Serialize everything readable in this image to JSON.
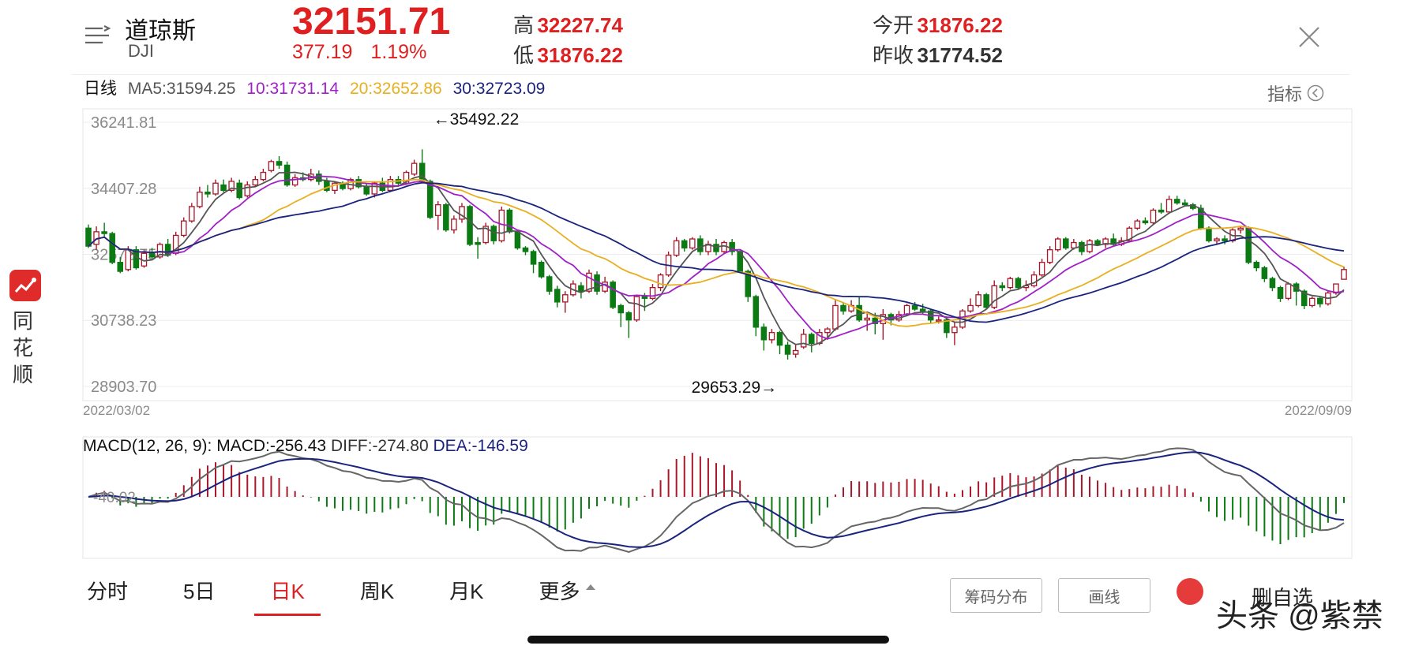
{
  "header": {
    "name": "道琼斯",
    "code": "DJI",
    "price": "32151.71",
    "change": "377.19",
    "change_pct": "1.19%",
    "high_label": "高",
    "high": "32227.74",
    "low_label": "低",
    "low": "31876.22",
    "open_label": "今开",
    "open": "31876.22",
    "prev_close_label": "昨收",
    "prev_close": "31774.52"
  },
  "ma_bar": {
    "period": "日线",
    "ma5": "MA5:31594.25",
    "ma10": "10:31731.14",
    "ma20": "20:32652.86",
    "ma30": "30:32723.09"
  },
  "indicator_label": "指标",
  "sidebar": {
    "app_name": "同花顺"
  },
  "colors": {
    "up": "#a8182a",
    "down": "#0c7a13",
    "ma5": "#555555",
    "ma10": "#a020c8",
    "ma20": "#e8b020",
    "ma30": "#1a237e",
    "accent": "#e02020"
  },
  "chart_data": [
    {
      "type": "candlestick",
      "y_ticks": [
        "36241.81",
        "34407.28",
        "32572.75",
        "30738.23",
        "28903.70"
      ],
      "ylim": [
        28903.7,
        36241.81
      ],
      "x_start": "2022/03/02",
      "x_end": "2022/09/09",
      "max_annotation": "←35492.22",
      "min_annotation": "29653.29→",
      "candles": [
        [
          33300,
          32800,
          33400,
          32750
        ],
        [
          32850,
          33200,
          33350,
          32700
        ],
        [
          33200,
          33150,
          33450,
          33050
        ],
        [
          33150,
          32350,
          33200,
          32300
        ],
        [
          32350,
          32100,
          32500,
          32050
        ],
        [
          32150,
          32700,
          32800,
          32100
        ],
        [
          32700,
          32200,
          32800,
          32150
        ],
        [
          32250,
          32600,
          32700,
          32200
        ],
        [
          32600,
          32500,
          32750,
          32450
        ],
        [
          32500,
          32850,
          32900,
          32450
        ],
        [
          32850,
          32550,
          33000,
          32500
        ],
        [
          32600,
          33100,
          33200,
          32550
        ],
        [
          33100,
          33500,
          33600,
          33050
        ],
        [
          33500,
          33900,
          34000,
          33450
        ],
        [
          33900,
          34300,
          34450,
          33850
        ],
        [
          34300,
          34250,
          34500,
          34150
        ],
        [
          34250,
          34550,
          34650,
          34200
        ],
        [
          34500,
          34350,
          34650,
          34300
        ],
        [
          34350,
          34600,
          34700,
          34300
        ],
        [
          34550,
          34150,
          34650,
          34100
        ],
        [
          34200,
          34500,
          34600,
          34150
        ],
        [
          34500,
          34650,
          34750,
          34450
        ],
        [
          34650,
          34850,
          34950,
          34600
        ],
        [
          34900,
          35150,
          35200,
          34850
        ],
        [
          35150,
          35050,
          35300,
          34950
        ],
        [
          35050,
          34500,
          35150,
          34450
        ],
        [
          34500,
          34700,
          34800,
          34450
        ],
        [
          34700,
          34650,
          34850,
          34600
        ],
        [
          34650,
          34800,
          34950,
          34600
        ],
        [
          34800,
          34600,
          34900,
          34500
        ],
        [
          34600,
          34350,
          34700,
          34300
        ],
        [
          34350,
          34550,
          34600,
          34250
        ],
        [
          34550,
          34400,
          34600,
          34350
        ],
        [
          34400,
          34650,
          34700,
          34350
        ],
        [
          34650,
          34450,
          34750,
          34400
        ],
        [
          34450,
          34250,
          34550,
          34200
        ],
        [
          34250,
          34550,
          34600,
          34150
        ],
        [
          34550,
          34350,
          34700,
          34300
        ],
        [
          34350,
          34650,
          34750,
          34300
        ],
        [
          34650,
          34550,
          34750,
          34450
        ],
        [
          34550,
          34850,
          34900,
          34500
        ],
        [
          34800,
          35100,
          35200,
          34750
        ],
        [
          35100,
          34600,
          35490,
          34550
        ],
        [
          34600,
          33600,
          34650,
          33550
        ],
        [
          33650,
          33950,
          34050,
          33250
        ],
        [
          33950,
          33250,
          34000,
          33200
        ],
        [
          33250,
          33550,
          33650,
          33150
        ],
        [
          33550,
          33900,
          34000,
          33450
        ],
        [
          33900,
          32850,
          33950,
          32800
        ],
        [
          32900,
          32850,
          33050,
          32450
        ],
        [
          32900,
          33350,
          33450,
          32850
        ],
        [
          33350,
          32950,
          33400,
          32850
        ],
        [
          32950,
          33800,
          33900,
          32900
        ],
        [
          33800,
          33200,
          33850,
          33150
        ],
        [
          33200,
          32750,
          33250,
          32700
        ],
        [
          32750,
          32650,
          32800,
          32550
        ],
        [
          32650,
          32300,
          32700,
          32050
        ],
        [
          32350,
          31950,
          32400,
          31900
        ],
        [
          31950,
          31550,
          32000,
          31450
        ],
        [
          31600,
          31250,
          31700,
          31100
        ],
        [
          31250,
          31450,
          31550,
          30950
        ],
        [
          31450,
          31750,
          31850,
          31400
        ],
        [
          31700,
          31550,
          31800,
          31350
        ],
        [
          31550,
          32050,
          32150,
          31500
        ],
        [
          32000,
          31550,
          32100,
          31450
        ],
        [
          31550,
          31800,
          31950,
          31500
        ],
        [
          31800,
          31100,
          31850,
          31050
        ],
        [
          31150,
          30950,
          31200,
          30550
        ],
        [
          30950,
          30750,
          31000,
          30250
        ],
        [
          30750,
          31400,
          31450,
          30700
        ],
        [
          31400,
          31350,
          31500,
          31000
        ],
        [
          31350,
          31650,
          31750,
          31300
        ],
        [
          31650,
          32000,
          32050,
          31550
        ],
        [
          32000,
          32550,
          32650,
          31950
        ],
        [
          32550,
          32950,
          33050,
          32500
        ],
        [
          32950,
          32750,
          33000,
          32650
        ],
        [
          32750,
          33000,
          33050,
          32700
        ],
        [
          33000,
          32650,
          33100,
          32550
        ],
        [
          32650,
          32850,
          32950,
          32550
        ],
        [
          32850,
          32650,
          33000,
          32550
        ],
        [
          32650,
          32900,
          32950,
          32600
        ],
        [
          32900,
          32650,
          33000,
          32550
        ],
        [
          32650,
          32100,
          32700,
          32050
        ],
        [
          32100,
          31400,
          32150,
          31250
        ],
        [
          31400,
          30550,
          31450,
          30300
        ],
        [
          30550,
          30200,
          30650,
          29900
        ],
        [
          30200,
          30400,
          30500,
          30100
        ],
        [
          30400,
          30050,
          30450,
          29800
        ],
        [
          30050,
          29800,
          30150,
          29650
        ],
        [
          29800,
          29900,
          30050,
          29700
        ],
        [
          30000,
          30350,
          30500,
          29950
        ],
        [
          30350,
          30100,
          30400,
          29850
        ],
        [
          30100,
          30400,
          30500,
          30050
        ],
        [
          30400,
          30500,
          30550,
          30200
        ],
        [
          30500,
          31150,
          31300,
          30450
        ],
        [
          31150,
          31000,
          31250,
          30900
        ],
        [
          31000,
          31150,
          31300,
          30950
        ],
        [
          31150,
          30750,
          31400,
          30700
        ],
        [
          30750,
          30800,
          30950,
          30450
        ],
        [
          30800,
          30650,
          30950,
          30350
        ],
        [
          30650,
          30900,
          31050,
          30200
        ],
        [
          30900,
          30750,
          30950,
          30600
        ],
        [
          30750,
          30900,
          31000,
          30700
        ],
        [
          30900,
          31150,
          31200,
          30850
        ],
        [
          31150,
          31050,
          31250,
          31000
        ],
        [
          31050,
          31000,
          31200,
          30900
        ],
        [
          31000,
          30750,
          31050,
          30650
        ],
        [
          30750,
          30750,
          30850,
          30650
        ],
        [
          30750,
          30400,
          30850,
          30250
        ],
        [
          30400,
          30550,
          30700,
          30050
        ],
        [
          30550,
          31000,
          31050,
          30500
        ],
        [
          31000,
          31150,
          31350,
          30950
        ],
        [
          31150,
          31450,
          31550,
          31100
        ],
        [
          31450,
          31100,
          31500,
          31050
        ],
        [
          31100,
          31700,
          31850,
          31050
        ],
        [
          31700,
          31650,
          31800,
          31550
        ],
        [
          31650,
          31900,
          31950,
          31600
        ],
        [
          31900,
          31650,
          31950,
          31600
        ],
        [
          31650,
          31700,
          31850,
          31550
        ],
        [
          31700,
          32000,
          32100,
          31650
        ],
        [
          32000,
          32350,
          32450,
          31950
        ],
        [
          32350,
          32700,
          32800,
          32300
        ],
        [
          32700,
          33000,
          33050,
          32650
        ],
        [
          33000,
          32750,
          33050,
          32700
        ],
        [
          32750,
          32900,
          33000,
          32700
        ],
        [
          32900,
          32650,
          32950,
          32550
        ],
        [
          32650,
          32950,
          33000,
          32600
        ],
        [
          32950,
          32850,
          33000,
          32800
        ],
        [
          32850,
          33000,
          33050,
          32750
        ],
        [
          33000,
          32850,
          33150,
          32800
        ],
        [
          32850,
          32950,
          33050,
          32800
        ],
        [
          32950,
          33300,
          33350,
          32900
        ],
        [
          33300,
          33500,
          33550,
          33250
        ],
        [
          33500,
          33450,
          33600,
          33400
        ],
        [
          33450,
          33800,
          33850,
          33400
        ],
        [
          33800,
          33750,
          34000,
          33700
        ],
        [
          33750,
          34100,
          34200,
          33700
        ],
        [
          34100,
          34000,
          34200,
          33950
        ],
        [
          34000,
          33950,
          34100,
          33900
        ],
        [
          33950,
          33850,
          34000,
          33800
        ],
        [
          33850,
          33300,
          33950,
          33250
        ],
        [
          33300,
          32950,
          33350,
          32900
        ],
        [
          32950,
          33000,
          33050,
          32850
        ],
        [
          33000,
          32950,
          33100,
          32850
        ],
        [
          32950,
          33250,
          33300,
          32900
        ],
        [
          33250,
          33300,
          33350,
          33150
        ],
        [
          33300,
          32350,
          33350,
          32300
        ],
        [
          32350,
          32200,
          32400,
          32100
        ],
        [
          32200,
          31900,
          32250,
          31800
        ],
        [
          31900,
          31650,
          31950,
          31550
        ],
        [
          31650,
          31350,
          31700,
          31250
        ],
        [
          31350,
          31750,
          31800,
          31300
        ],
        [
          31750,
          31550,
          31800,
          31150
        ],
        [
          31550,
          31150,
          31600,
          31050
        ],
        [
          31150,
          31350,
          31400,
          31100
        ],
        [
          31350,
          31200,
          31400,
          31100
        ],
        [
          31200,
          31500,
          31550,
          31150
        ],
        [
          31500,
          31750,
          31750,
          31450
        ],
        [
          31880,
          32150,
          32230,
          31880
        ]
      ],
      "ma_series": [
        "MA5",
        "MA10",
        "MA20",
        "MA30"
      ]
    },
    {
      "type": "bar+line",
      "label": "MACD(12, 26, 9):",
      "macd": "MACD:-256.43",
      "diff": "DIFF:-274.80",
      "dea": "DEA:-146.59",
      "zero_label": "-40.02"
    }
  ],
  "tabs": [
    "分时",
    "5日",
    "日K",
    "周K",
    "月K",
    "更多"
  ],
  "active_tab": "日K",
  "buttons": {
    "chips": "筹码分布",
    "draw": "画线",
    "watchlist": "删自选"
  },
  "watermark": "头条 @紫禁"
}
